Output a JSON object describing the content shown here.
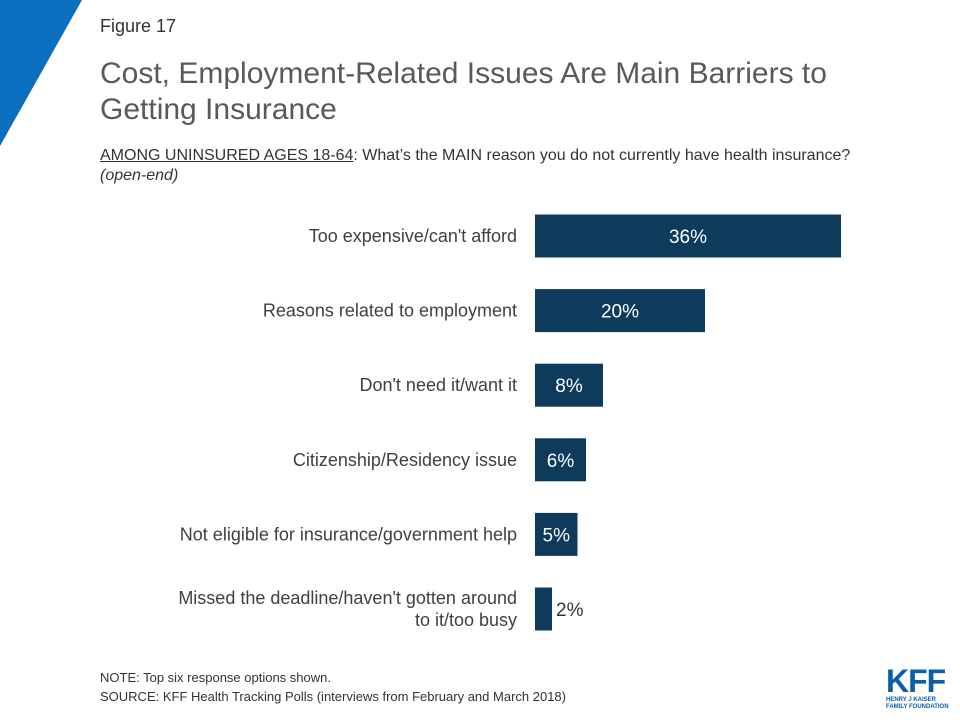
{
  "figure_label": "Figure 17",
  "title": "Cost, Employment-Related Issues Are Main Barriers to Getting Insurance",
  "subtitle": {
    "underlined": "AMONG UNINSURED AGES 18-64",
    "text": ": What’s the MAIN reason you do not currently have health insurance? ",
    "italic": "(open-end)"
  },
  "chart_data": {
    "type": "bar",
    "orientation": "horizontal",
    "categories": [
      [
        "Too expensive/can't afford"
      ],
      [
        "Reasons related to employment"
      ],
      [
        "Don't need it/want it"
      ],
      [
        "Citizenship/Residency issue"
      ],
      [
        "Not eligible for insurance/government help"
      ],
      [
        "Missed the deadline/haven't gotten around",
        "to it/too busy"
      ]
    ],
    "values": [
      36,
      20,
      8,
      6,
      5,
      2
    ],
    "data_labels": [
      "36%",
      "20%",
      "8%",
      "6%",
      "5%",
      "2%"
    ],
    "xlim": [
      0,
      100
    ],
    "bar_color": "#0e3a5c",
    "grid": false,
    "legend": "none"
  },
  "note": "NOTE: Top six response options shown.",
  "source": "SOURCE: KFF Health Tracking Polls (interviews from February and March 2018)",
  "logo": {
    "mark": "KFF",
    "sub_line1": "HENRY J KAISER",
    "sub_line2": "FAMILY FOUNDATION",
    "color": "#0b5fa8"
  },
  "accent_color": "#0b6fc0"
}
